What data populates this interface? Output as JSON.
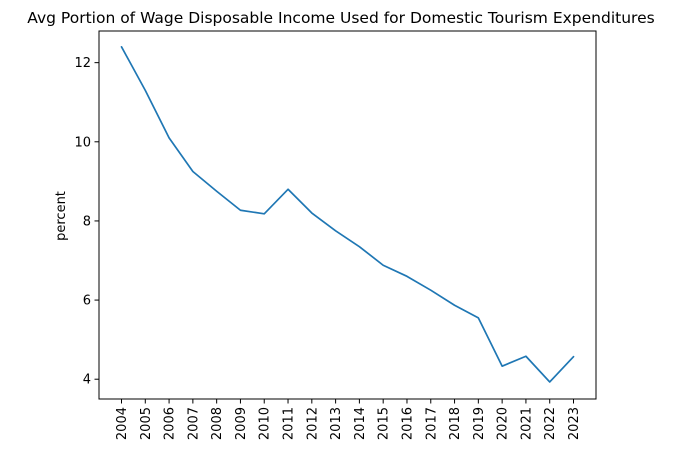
{
  "chart_data": {
    "type": "line",
    "title": "Avg Portion of Wage Disposable Income Used for Domestic Tourism Expenditures",
    "xlabel": "",
    "ylabel": "percent",
    "categories": [
      "2004",
      "2005",
      "2006",
      "2007",
      "2008",
      "2009",
      "2010",
      "2011",
      "2012",
      "2013",
      "2014",
      "2015",
      "2016",
      "2017",
      "2018",
      "2019",
      "2020",
      "2021",
      "2022",
      "2023"
    ],
    "values": [
      12.4,
      11.3,
      10.1,
      9.25,
      8.75,
      8.27,
      8.18,
      8.8,
      8.2,
      7.75,
      7.35,
      6.88,
      6.6,
      6.25,
      5.87,
      5.55,
      4.33,
      4.58,
      3.93,
      4.57
    ],
    "yticks": [
      4,
      6,
      8,
      10,
      12
    ],
    "ytick_labels": [
      "4",
      "6",
      "8",
      "10",
      "12"
    ],
    "ylim": [
      3.5,
      12.8
    ],
    "grid": false,
    "legend": "none",
    "line_color": "#1f77b4"
  }
}
